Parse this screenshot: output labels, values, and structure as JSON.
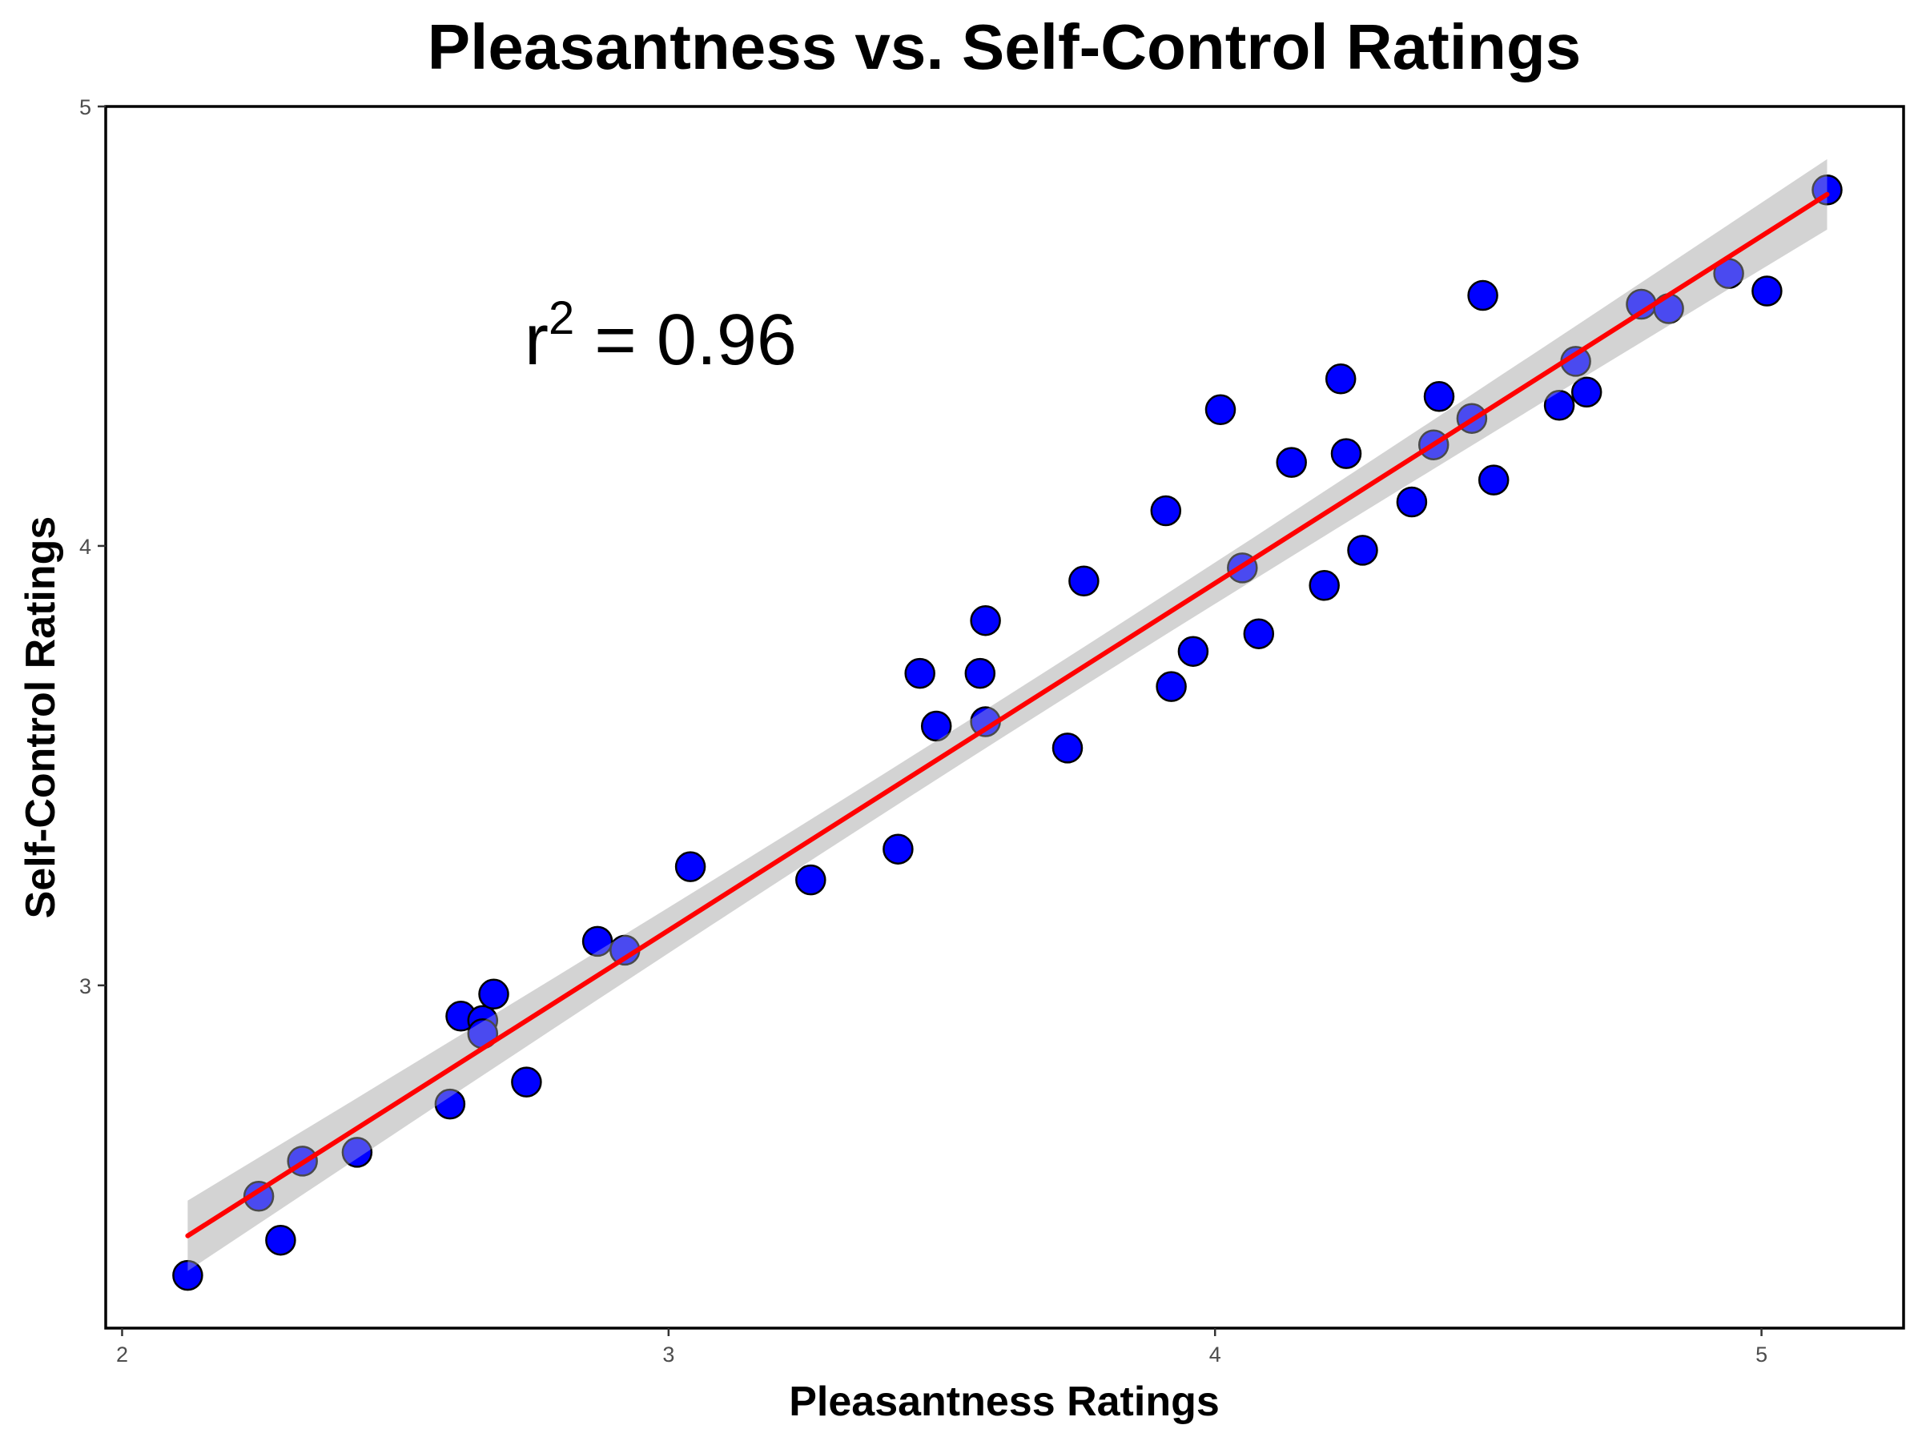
{
  "chart_data": {
    "type": "scatter",
    "title": "Pleasantness vs. Self-Control Ratings",
    "xlabel": "Pleasantness Ratings",
    "ylabel": "Self-Control Ratings",
    "xlim": [
      1.97,
      5.26
    ],
    "ylim": [
      2.22,
      5.0
    ],
    "xticks": [
      "2",
      "3",
      "4",
      "5"
    ],
    "yticks": [
      "3",
      "4",
      "5"
    ],
    "annotation": {
      "base": "r",
      "sup": "2",
      "rest": " = 0.96"
    },
    "points": [
      [
        2.12,
        2.34
      ],
      [
        2.25,
        2.52
      ],
      [
        2.29,
        2.42
      ],
      [
        2.33,
        2.6
      ],
      [
        2.43,
        2.62
      ],
      [
        2.6,
        2.73
      ],
      [
        2.62,
        2.93
      ],
      [
        2.66,
        2.92
      ],
      [
        2.66,
        2.89
      ],
      [
        2.68,
        2.98
      ],
      [
        2.74,
        2.78
      ],
      [
        2.87,
        3.1
      ],
      [
        2.92,
        3.08
      ],
      [
        3.04,
        3.27
      ],
      [
        3.26,
        3.24
      ],
      [
        3.42,
        3.31
      ],
      [
        3.46,
        3.71
      ],
      [
        3.49,
        3.59
      ],
      [
        3.57,
        3.71
      ],
      [
        3.58,
        3.6
      ],
      [
        3.58,
        3.83
      ],
      [
        3.73,
        3.54
      ],
      [
        3.76,
        3.92
      ],
      [
        3.91,
        4.08
      ],
      [
        3.92,
        3.68
      ],
      [
        3.96,
        3.76
      ],
      [
        4.01,
        4.31
      ],
      [
        4.05,
        3.95
      ],
      [
        4.08,
        3.8
      ],
      [
        4.14,
        4.19
      ],
      [
        4.2,
        3.91
      ],
      [
        4.23,
        4.38
      ],
      [
        4.24,
        4.21
      ],
      [
        4.27,
        3.99
      ],
      [
        4.36,
        4.1
      ],
      [
        4.4,
        4.23
      ],
      [
        4.41,
        4.34
      ],
      [
        4.47,
        4.29
      ],
      [
        4.49,
        4.57
      ],
      [
        4.51,
        4.15
      ],
      [
        4.63,
        4.32
      ],
      [
        4.66,
        4.42
      ],
      [
        4.68,
        4.35
      ],
      [
        4.78,
        4.55
      ],
      [
        4.83,
        4.54
      ],
      [
        4.94,
        4.62
      ],
      [
        5.01,
        4.58
      ],
      [
        5.12,
        4.81
      ]
    ],
    "fit": {
      "x": [
        2.12,
        5.12
      ],
      "y": [
        2.43,
        4.8
      ],
      "band_width": 0.08
    },
    "colors": {
      "point_fill": "#0000ff",
      "point_stroke": "#000000",
      "fit_line": "#ff0000",
      "band": "#d3d3d3"
    },
    "grid": false,
    "legend": "none"
  }
}
